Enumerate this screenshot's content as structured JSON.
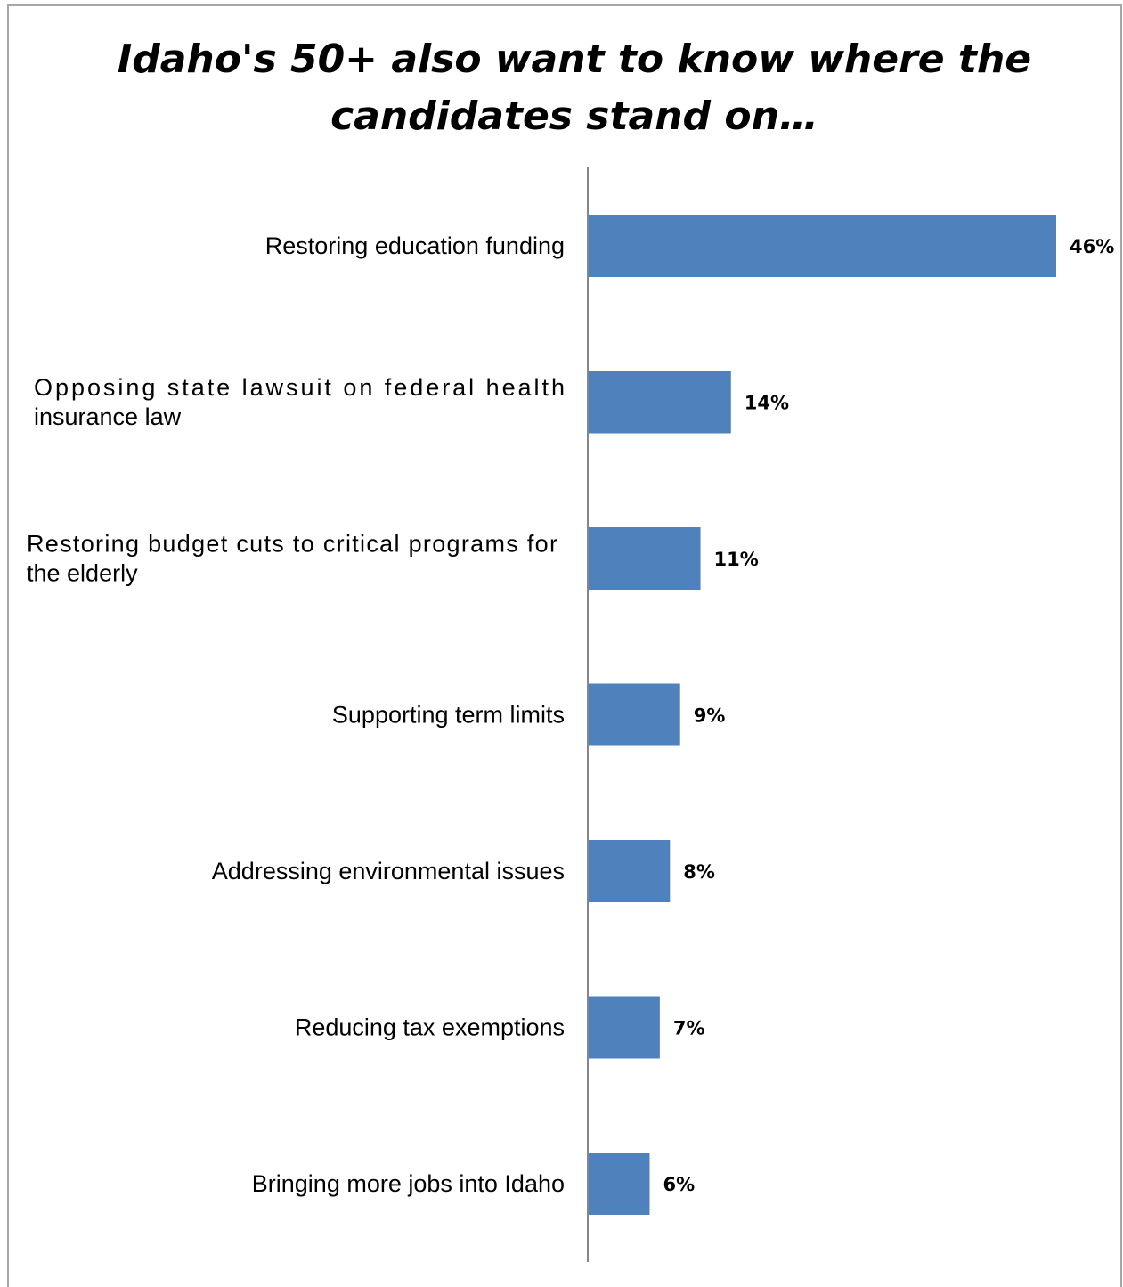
{
  "chart_data": {
    "type": "bar",
    "orientation": "horizontal",
    "title": "Idaho's 50+ also want to know where the candidates stand on…",
    "categories": [
      "Restoring education funding",
      "Opposing state lawsuit on federal health insurance law",
      "Restoring budget cuts to critical programs for the elderly",
      "Supporting term limits",
      "Addressing environmental issues",
      "Reducing tax exemptions",
      "Bringing more jobs into Idaho"
    ],
    "label_lines": [
      [
        "Restoring education funding"
      ],
      [
        "Opposing state lawsuit on federal health",
        "insurance law"
      ],
      [
        "Restoring budget cuts to critical programs for",
        "the elderly"
      ],
      [
        "Supporting term limits"
      ],
      [
        "Addressing environmental issues"
      ],
      [
        "Reducing tax exemptions"
      ],
      [
        "Bringing more jobs into Idaho"
      ]
    ],
    "values": [
      46,
      14,
      11,
      9,
      8,
      7,
      6
    ],
    "value_labels": [
      "46%",
      "14%",
      "11%",
      "9%",
      "8%",
      "7%",
      "6%"
    ],
    "xlim": [
      0,
      46
    ],
    "grid": false,
    "legend": "none",
    "bar_color": "#4f81bd"
  }
}
